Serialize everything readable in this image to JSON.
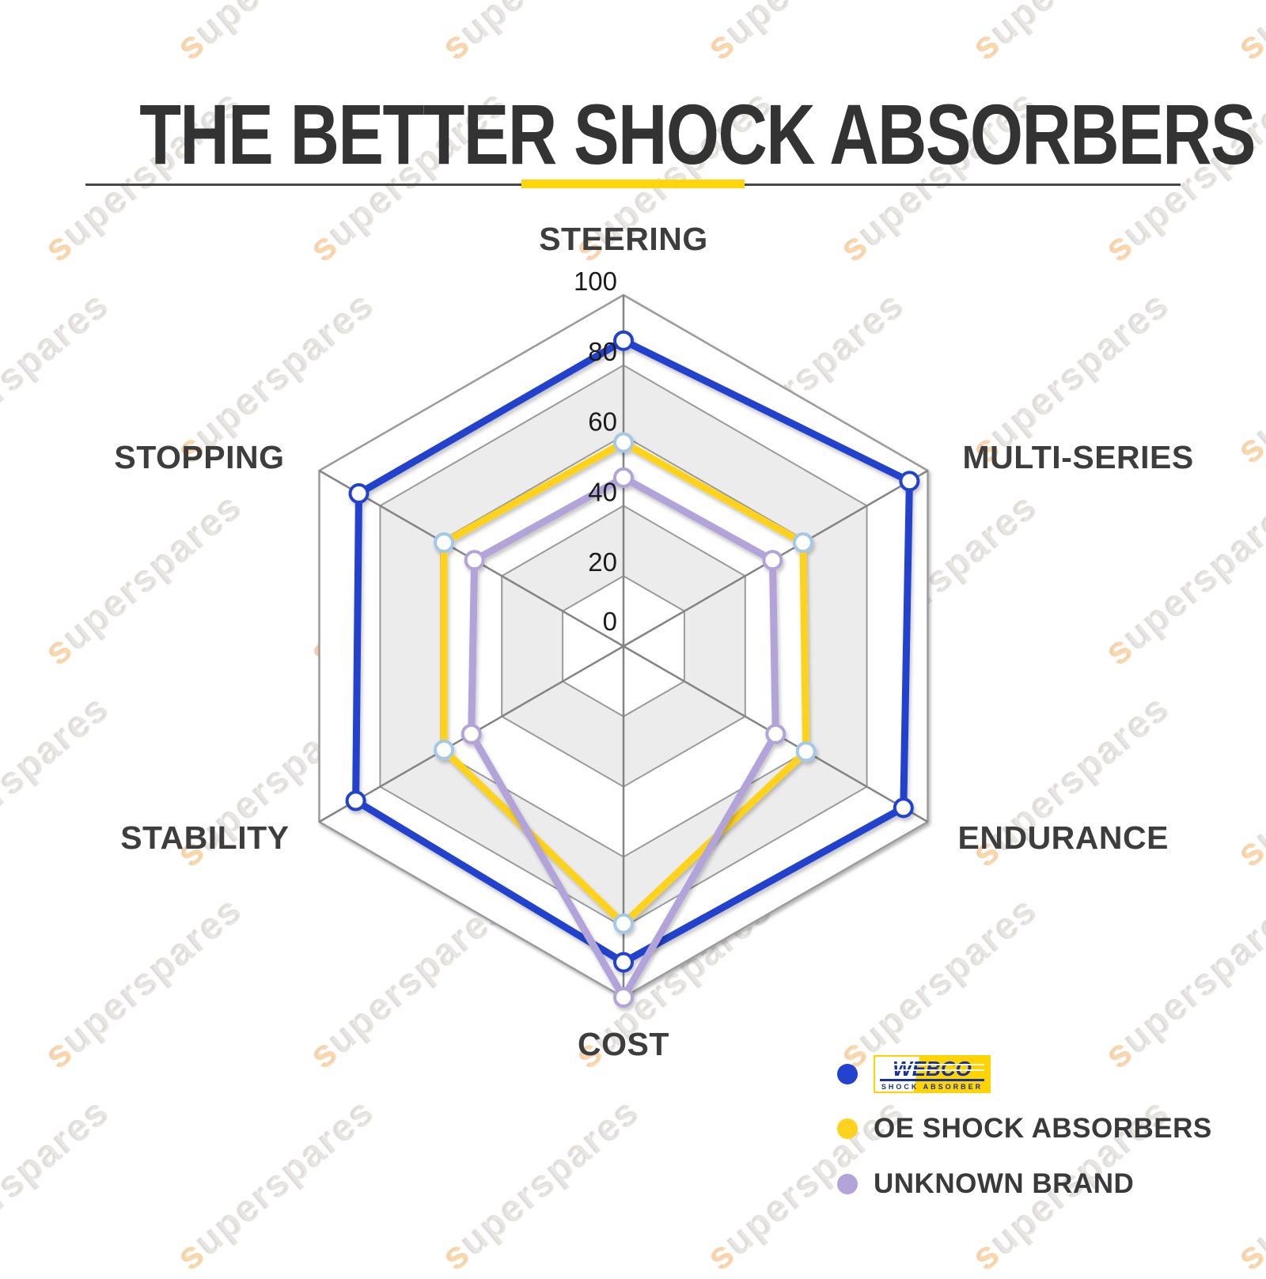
{
  "title": "THE BETTER SHOCK ABSORBERS",
  "watermark": {
    "text": "superspares"
  },
  "colors": {
    "webco_blue": "#2342cd",
    "oe_yellow": "#ffd21e",
    "unknown_purple": "#b2a4d8",
    "accent_yellow": "#ffd60a",
    "axis_label_gray": "#3d3d3d",
    "tick_black": "#1b1b1b",
    "grid_gray": "#9b9b9b",
    "ring_shade": "#ececec"
  },
  "legend": {
    "rows": [
      {
        "type": "logo",
        "brand": "WEBCO",
        "sub": "SHOCK ABSORBER",
        "dot_color": "#2342cd"
      },
      {
        "type": "text",
        "label": "OE SHOCK ABSORBERS",
        "dot_color": "#ffd21e"
      },
      {
        "type": "text",
        "label": "UNKNOWN BRAND",
        "dot_color": "#b2a4d8"
      }
    ]
  },
  "chart_data": {
    "type": "radar",
    "categories": [
      "STEERING",
      "MULTI-SERIES",
      "ENDURANCE",
      "COST",
      "STABILITY",
      "STOPPING"
    ],
    "ticks": [
      0,
      20,
      40,
      60,
      80,
      100
    ],
    "rlim": [
      0,
      100
    ],
    "grid": "hexagonal, rings every 20, alternating white / light-gray fill",
    "legend_position": "bottom-right",
    "series": [
      {
        "name": "WEBCO",
        "color": "#2342cd",
        "marker_stroke": "#2342cd",
        "values": [
          87,
          94,
          92,
          90,
          88,
          87
        ]
      },
      {
        "name": "OE SHOCK ABSORBERS",
        "color": "#ffd21e",
        "marker_stroke": "#a5c8e8",
        "values": [
          58,
          59,
          60,
          79,
          59,
          59
        ]
      },
      {
        "name": "UNKNOWN BRAND",
        "color": "#b2a4d8",
        "marker_stroke": "#b2a4d8",
        "values": [
          48,
          49,
          50,
          100,
          50,
          49
        ]
      }
    ]
  }
}
